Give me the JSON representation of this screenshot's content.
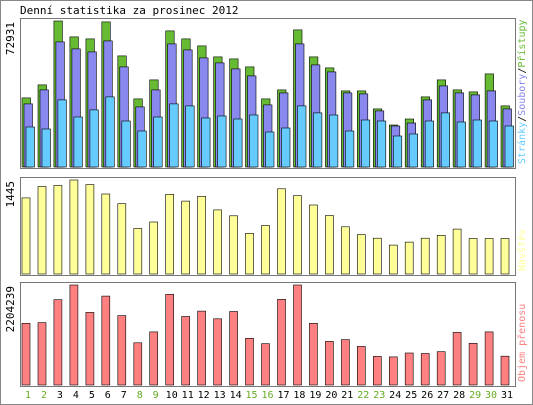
{
  "chart_data": {
    "type": "bar",
    "title": "Denní statistika za prosinec 2012",
    "categories": [
      "1",
      "2",
      "3",
      "4",
      "5",
      "6",
      "7",
      "8",
      "9",
      "10",
      "11",
      "12",
      "13",
      "14",
      "15",
      "16",
      "17",
      "18",
      "19",
      "20",
      "21",
      "22",
      "23",
      "24",
      "25",
      "26",
      "27",
      "28",
      "29",
      "30",
      "31"
    ],
    "weekend_days": [
      "1",
      "2",
      "8",
      "9",
      "15",
      "16",
      "22",
      "23",
      "29",
      "30"
    ],
    "colors": {
      "pristupy": "#66bb33",
      "soubory": "#8888ee",
      "stranky": "#66ccff",
      "navstevy": "#ffff99",
      "prenos": "#ff8080",
      "weekday_label": "#000000",
      "weekend_label": "#66aa22"
    },
    "panels": [
      {
        "id": "hits",
        "max_label": "72931",
        "legend": [
          {
            "text": "Stránky",
            "color": "#66ccff"
          },
          {
            "text": "/",
            "color": "#000000"
          },
          {
            "text": "Soubory",
            "color": "#8888ee"
          },
          {
            "text": "/",
            "color": "#000000"
          },
          {
            "text": "Přístupy",
            "color": "#66bb33"
          }
        ],
        "ymax": 72931,
        "series": [
          {
            "name": "Přístupy",
            "values": [
              34500,
              41000,
              72931,
              65000,
              64000,
              72500,
              55500,
              34000,
              43500,
              68000,
              64000,
              60500,
              55000,
              54000,
              50000,
              34000,
              38500,
              68500,
              55000,
              49500,
              38000,
              38000,
              29000,
              21000,
              24000,
              35000,
              43500,
              38500,
              37500,
              46500,
              30500
            ]
          },
          {
            "name": "Soubory",
            "values": [
              31500,
              38500,
              62500,
              59000,
              57500,
              63000,
              50000,
              30000,
              38500,
              61500,
              58500,
              54500,
              52000,
              49000,
              45500,
              31000,
              37000,
              61500,
              51000,
              47500,
              37000,
              36500,
              28000,
              20500,
              22000,
              33500,
              40500,
              37000,
              36000,
              38000,
              29000
            ]
          },
          {
            "name": "Stránky",
            "values": [
              20000,
              19000,
              33500,
              25000,
              28500,
              35000,
              23000,
              18000,
              25000,
              31500,
              30500,
              24500,
              25500,
              24000,
              26000,
              17500,
              19500,
              30500,
              27000,
              26000,
              18000,
              23500,
              23000,
              15500,
              16500,
              23000,
              27000,
              22500,
              23500,
              23000,
              20500
            ]
          }
        ]
      },
      {
        "id": "visits",
        "max_label": "1445",
        "legend": [
          {
            "text": "Návštěv",
            "color": "#ffff99"
          }
        ],
        "ymax": 1445,
        "series": [
          {
            "name": "Návštěv",
            "values": [
              1170,
              1345,
              1360,
              1445,
              1375,
              1230,
              1080,
              700,
              800,
              1225,
              1120,
              1195,
              985,
              895,
              625,
              745,
              1310,
              1205,
              1060,
              900,
              725,
              605,
              550,
              445,
              490,
              550,
              595,
              690,
              545,
              545,
              545
            ]
          }
        ]
      },
      {
        "id": "transfer",
        "max_label": "2204239",
        "legend": [
          {
            "text": "Objem přenosu",
            "color": "#ff8080"
          }
        ],
        "ymax": 2204239,
        "series": [
          {
            "name": "Objem přenosu",
            "values": [
              1360000,
              1375000,
              1880000,
              2204239,
              1600000,
              1960000,
              1530000,
              930000,
              1170000,
              2000000,
              1510000,
              1630000,
              1460000,
              1620000,
              1030000,
              910000,
              1890000,
              2204239,
              1360000,
              960000,
              1000000,
              850000,
              630000,
              620000,
              705000,
              695000,
              735000,
              1160000,
              920000,
              1170000,
              635000
            ]
          }
        ]
      }
    ]
  }
}
